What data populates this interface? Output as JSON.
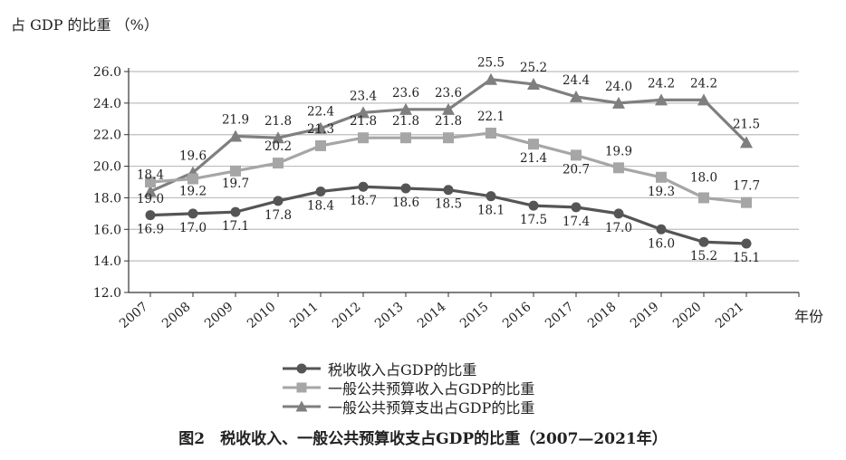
{
  "unit_label": "占 GDP 的比重 （%）",
  "caption": "图2　税收收入、一般公共预算收支占GDP的比重（2007—2021年）",
  "chart_data": {
    "type": "line",
    "title": "",
    "xlabel": "年份",
    "ylabel": "占 GDP 的比重 （%）",
    "ylim": [
      12.0,
      26.0
    ],
    "yticks": [
      "12.0",
      "14.0",
      "16.0",
      "18.0",
      "20.0",
      "22.0",
      "24.0",
      "26.0"
    ],
    "grid": "horizontal",
    "legend_position": "bottom",
    "categories": [
      "2007",
      "2008",
      "2009",
      "2010",
      "2011",
      "2012",
      "2013",
      "2014",
      "2015",
      "2016",
      "2017",
      "2018",
      "2019",
      "2020",
      "2021"
    ],
    "series": [
      {
        "name": "税收收入占GDP的比重",
        "marker": "circle",
        "color": "#555555",
        "values": [
          16.9,
          17.0,
          17.1,
          17.8,
          18.4,
          18.7,
          18.6,
          18.5,
          18.1,
          17.5,
          17.4,
          17.0,
          16.0,
          15.2,
          15.1
        ],
        "labels": [
          "16.9",
          "17.0",
          "17.1",
          "17.8",
          "18.4",
          "18.7",
          "18.6",
          "18.5",
          "18.1",
          "17.5",
          "17.4",
          "17.0",
          "16.0",
          "15.2",
          "15.1"
        ]
      },
      {
        "name": "一般公共预算收入占GDP的比重",
        "marker": "square",
        "color": "#a6a6a6",
        "values": [
          19.0,
          19.2,
          19.7,
          20.2,
          21.3,
          21.8,
          21.8,
          21.8,
          22.1,
          21.4,
          20.7,
          19.9,
          19.3,
          18.0,
          17.7
        ],
        "labels": [
          "19.0",
          "19.2",
          "19.7",
          "20.2",
          "21.3",
          "21.8",
          "21.8",
          "21.8",
          "22.1",
          "21.4",
          "20.7",
          "19.9",
          "19.3",
          "18.0",
          "17.7"
        ]
      },
      {
        "name": "一般公共预算支出占GDP的比重",
        "marker": "triangle",
        "color": "#7f7f7f",
        "values": [
          18.4,
          19.6,
          21.9,
          21.8,
          22.4,
          23.4,
          23.6,
          23.6,
          25.5,
          25.2,
          24.4,
          24.0,
          24.2,
          24.2,
          21.5
        ],
        "labels": [
          "18.4",
          "19.6",
          "21.9",
          "21.8",
          "22.4",
          "23.4",
          "23.6",
          "23.6",
          "25.5",
          "25.2",
          "24.4",
          "24.0",
          "24.2",
          "24.2",
          "21.5"
        ]
      }
    ]
  }
}
